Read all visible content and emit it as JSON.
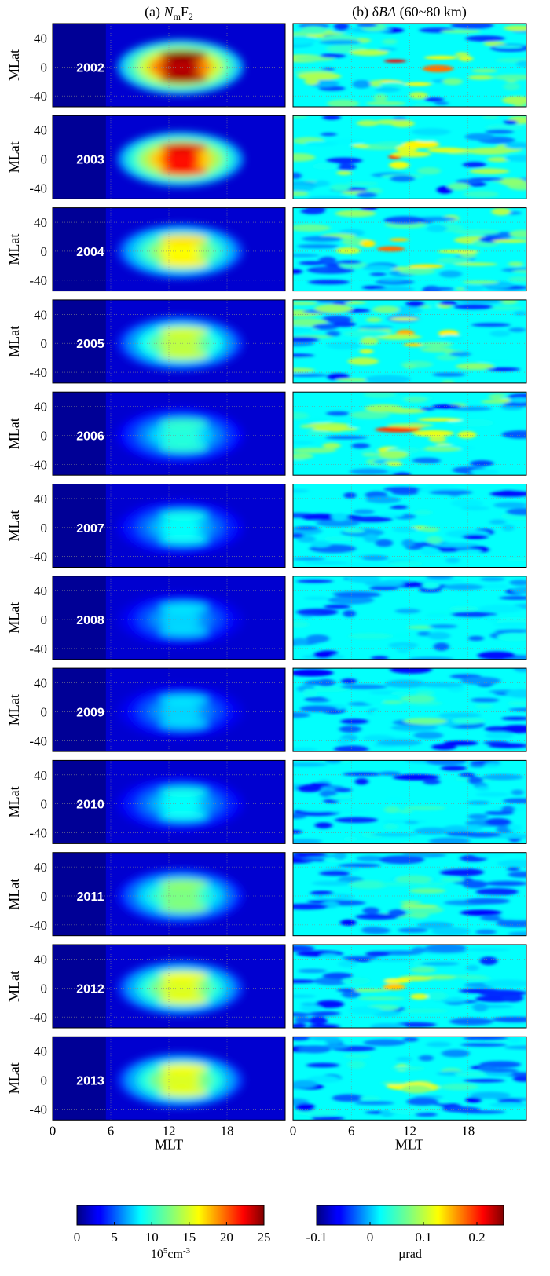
{
  "chart_data": [
    {
      "type": "heatmap",
      "panel_title_prefix": "(a) ",
      "panel_title_var": "N",
      "panel_title_sub": "m",
      "panel_title_rest": "F",
      "panel_title_sub2": "2",
      "xlabel": "MLT",
      "ylabel": "MLat",
      "xlim": [
        0,
        24
      ],
      "ylim": [
        -55,
        60
      ],
      "x_ticks": [
        0,
        6,
        12,
        18
      ],
      "y_ticks": [
        40,
        0,
        -40
      ],
      "x_tick_labels": [
        "0",
        "6",
        "12",
        "18"
      ],
      "y_tick_labels": [
        "40",
        "0",
        "-40"
      ],
      "grid": true,
      "years": [
        "2002",
        "2003",
        "2004",
        "2005",
        "2006",
        "2007",
        "2008",
        "2009",
        "2010",
        "2011",
        "2012",
        "2013"
      ],
      "peak_values": [
        25,
        23,
        17,
        15,
        10,
        9,
        8,
        8,
        9,
        13,
        16,
        16
      ],
      "colorbar": {
        "min": 0,
        "max": 25,
        "ticks": [
          "0",
          "5",
          "10",
          "15",
          "20",
          "25"
        ],
        "unit_base": "10",
        "unit_exp": "5",
        "unit_rest": "cm",
        "unit_exp2": "-3"
      }
    },
    {
      "type": "heatmap",
      "panel_title_prefix": "(b) δ",
      "panel_title_var": "BA",
      "panel_title_rest": " (60~80 km)",
      "xlabel": "MLT",
      "xlim": [
        0,
        24
      ],
      "ylim": [
        -55,
        60
      ],
      "x_ticks": [
        0,
        6,
        12,
        18
      ],
      "x_tick_labels": [
        "0",
        "6",
        "12",
        "18"
      ],
      "grid": true,
      "years": [
        "2002",
        "2003",
        "2004",
        "2005",
        "2006",
        "2007",
        "2008",
        "2009",
        "2010",
        "2011",
        "2012",
        "2013"
      ],
      "peak_values": [
        0.25,
        0.22,
        0.22,
        0.22,
        0.22,
        0.12,
        0.12,
        0.12,
        0.12,
        0.2,
        0.22,
        0.2
      ],
      "colorbar": {
        "min": -0.1,
        "max": 0.25,
        "ticks": [
          "-0.1",
          "0",
          "0.1",
          "0.2"
        ],
        "tick_values": [
          -0.1,
          0,
          0.1,
          0.2
        ],
        "unit": "µrad"
      }
    }
  ]
}
